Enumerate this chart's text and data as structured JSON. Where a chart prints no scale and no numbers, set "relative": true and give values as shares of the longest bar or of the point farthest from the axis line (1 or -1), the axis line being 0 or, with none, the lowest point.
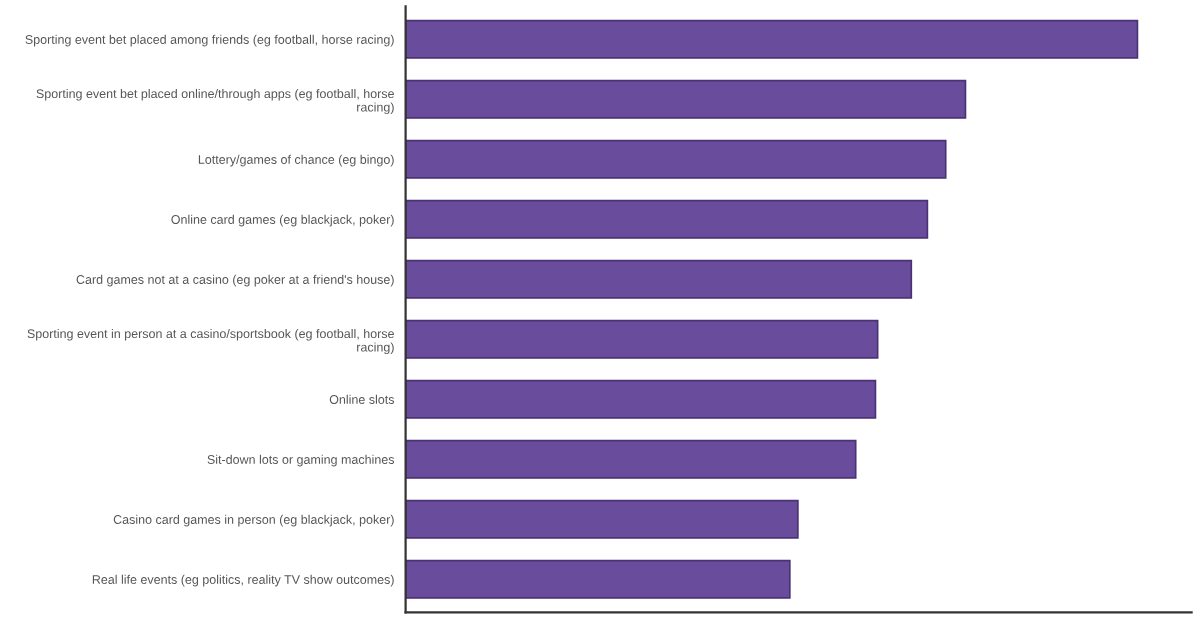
{
  "chart_data": {
    "type": "bar",
    "orientation": "horizontal",
    "relative": true,
    "color": "#6a4c9c",
    "categories": [
      "Sporting event bet placed among friends (eg football, horse racing)",
      "Sporting event bet placed online/through apps (eg football, horse\nracing)",
      "Lottery/games of chance (eg bingo)",
      "Online card games (eg blackjack, poker)",
      "Card games not at a casino (eg poker at a friend's house)",
      "Sporting event in person at a casino/sportsbook (eg football, horse\nracing)",
      "Online slots",
      "Sit-down lots or gaming machines",
      "Casino card games in person (eg blackjack, poker)",
      "Real life events (eg politics, reality TV show outcomes)"
    ],
    "values": [
      1,
      0.765,
      0.738,
      0.713,
      0.691,
      0.645,
      0.642,
      0.615,
      0.536,
      0.525
    ],
    "grid": false,
    "legend": false
  }
}
